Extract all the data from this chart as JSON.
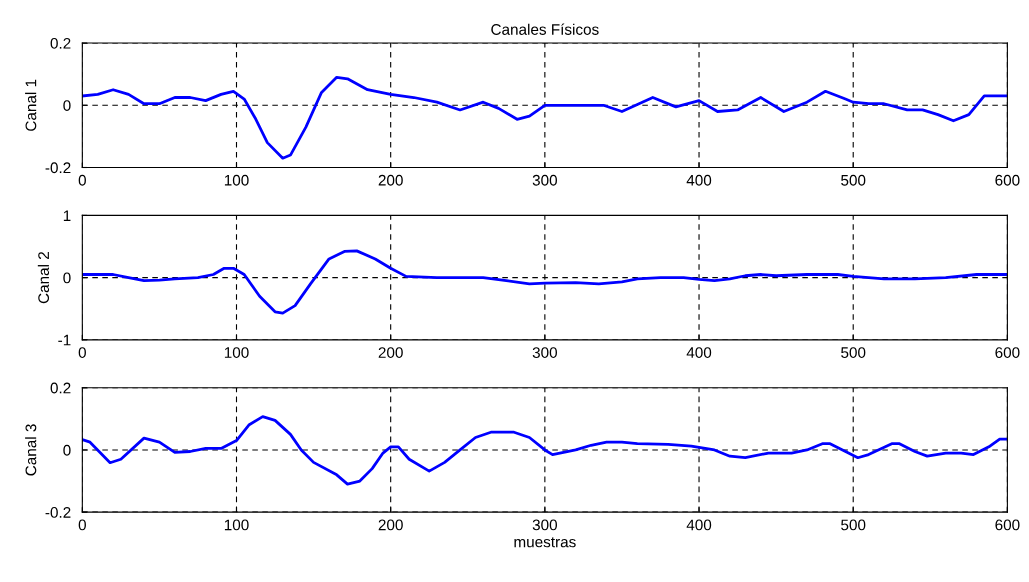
{
  "chart_data": [
    {
      "type": "line",
      "title": "Canales Físicos",
      "ylabel": "Canal 1",
      "xlim": [
        0,
        600
      ],
      "xticks": [
        0,
        100,
        200,
        300,
        400,
        500,
        600
      ],
      "ylim": [
        -0.2,
        0.2
      ],
      "yticks": [
        -0.2,
        0,
        0.2
      ],
      "grid": true,
      "line_style": "solid",
      "series": [
        {
          "color": "#0000ff",
          "x": [
            0,
            10,
            20,
            30,
            40,
            50,
            60,
            70,
            80,
            90,
            98,
            105,
            112,
            120,
            130,
            135,
            145,
            155,
            165,
            172,
            185,
            200,
            215,
            230,
            245,
            260,
            270,
            282,
            290,
            300,
            320,
            338,
            350,
            370,
            385,
            400,
            412,
            425,
            440,
            455,
            470,
            482,
            495,
            500,
            510,
            520,
            535,
            545,
            555,
            565,
            575,
            585,
            595,
            600
          ],
          "values": [
            0.03,
            0.035,
            0.05,
            0.035,
            0.005,
            0.005,
            0.025,
            0.025,
            0.015,
            0.035,
            0.045,
            0.02,
            -0.04,
            -0.12,
            -0.17,
            -0.16,
            -0.07,
            0.04,
            0.09,
            0.085,
            0.05,
            0.035,
            0.025,
            0.01,
            -0.015,
            0.01,
            -0.01,
            -0.045,
            -0.035,
            0.0,
            0.0,
            0.0,
            -0.02,
            0.025,
            -0.005,
            0.015,
            -0.02,
            -0.015,
            0.025,
            -0.02,
            0.01,
            0.045,
            0.02,
            0.01,
            0.005,
            0.005,
            -0.015,
            -0.015,
            -0.03,
            -0.05,
            -0.03,
            0.03,
            0.03,
            0.03
          ]
        }
      ]
    },
    {
      "type": "line",
      "ylabel": "Canal 2",
      "xlim": [
        0,
        600
      ],
      "xticks": [
        0,
        100,
        200,
        300,
        400,
        500,
        600
      ],
      "ylim": [
        -1,
        1
      ],
      "yticks": [
        -1,
        0,
        1
      ],
      "grid": true,
      "line_style": "solid",
      "series": [
        {
          "color": "#0000ff",
          "x": [
            0,
            20,
            30,
            40,
            50,
            60,
            75,
            85,
            92,
            98,
            105,
            115,
            125,
            130,
            138,
            148,
            160,
            170,
            178,
            190,
            200,
            210,
            230,
            260,
            275,
            290,
            300,
            320,
            335,
            350,
            360,
            375,
            390,
            400,
            410,
            420,
            430,
            440,
            450,
            470,
            490,
            500,
            510,
            520,
            540,
            560,
            580,
            600
          ],
          "values": [
            0.05,
            0.05,
            0.0,
            -0.05,
            -0.04,
            -0.02,
            0.0,
            0.05,
            0.15,
            0.15,
            0.05,
            -0.3,
            -0.55,
            -0.57,
            -0.45,
            -0.1,
            0.3,
            0.42,
            0.43,
            0.3,
            0.15,
            0.02,
            0.0,
            0.0,
            -0.05,
            -0.1,
            -0.09,
            -0.08,
            -0.1,
            -0.07,
            -0.02,
            0.0,
            0.0,
            -0.03,
            -0.05,
            -0.02,
            0.03,
            0.05,
            0.03,
            0.05,
            0.05,
            0.02,
            0.0,
            -0.02,
            -0.02,
            0.0,
            0.05,
            0.05
          ]
        }
      ]
    },
    {
      "type": "line",
      "ylabel": "Canal 3",
      "xlabel": "muestras",
      "xlim": [
        0,
        600
      ],
      "xticks": [
        0,
        100,
        200,
        300,
        400,
        500,
        600
      ],
      "ylim": [
        -0.2,
        0.2
      ],
      "yticks": [
        -0.2,
        0,
        0.2
      ],
      "grid": true,
      "line_style": "solid",
      "series": [
        {
          "color": "#0000ff",
          "x": [
            0,
            5,
            18,
            25,
            40,
            50,
            60,
            70,
            80,
            90,
            100,
            108,
            117,
            125,
            135,
            142,
            150,
            165,
            172,
            180,
            188,
            195,
            200,
            205,
            212,
            225,
            235,
            245,
            255,
            265,
            280,
            290,
            300,
            305,
            320,
            330,
            340,
            350,
            360,
            380,
            395,
            410,
            420,
            430,
            445,
            460,
            470,
            480,
            485,
            495,
            503,
            510,
            525,
            530,
            540,
            548,
            560,
            570,
            578,
            588,
            595,
            600
          ],
          "values": [
            0.033,
            0.025,
            -0.041,
            -0.03,
            0.038,
            0.025,
            -0.008,
            -0.005,
            0.005,
            0.005,
            0.03,
            0.08,
            0.107,
            0.095,
            0.05,
            0.0,
            -0.04,
            -0.08,
            -0.11,
            -0.1,
            -0.06,
            -0.01,
            0.01,
            0.01,
            -0.03,
            -0.068,
            -0.04,
            0.0,
            0.04,
            0.057,
            0.057,
            0.04,
            0.0,
            -0.015,
            0.0,
            0.015,
            0.025,
            0.025,
            0.02,
            0.018,
            0.012,
            0.0,
            -0.02,
            -0.025,
            -0.01,
            -0.01,
            0.0,
            0.02,
            0.02,
            -0.005,
            -0.025,
            -0.015,
            0.02,
            0.02,
            -0.005,
            -0.02,
            -0.01,
            -0.01,
            -0.015,
            0.01,
            0.035,
            0.035
          ]
        }
      ]
    }
  ]
}
